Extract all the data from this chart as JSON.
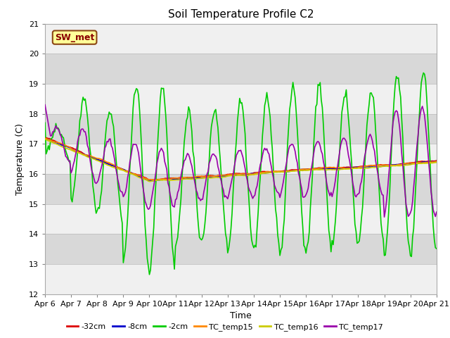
{
  "title": "Soil Temperature Profile C2",
  "xlabel": "Time",
  "ylabel": "Temperature (C)",
  "ylim": [
    12.0,
    21.0
  ],
  "yticks": [
    12.0,
    13.0,
    14.0,
    15.0,
    16.0,
    17.0,
    18.0,
    19.0,
    20.0,
    21.0
  ],
  "annotation_text": "SW_met",
  "annotation_text_color": "#8b0000",
  "annotation_bbox_face": "#ffff99",
  "annotation_bbox_edge": "#8b4513",
  "fig_bg": "#ffffff",
  "plot_bg_light": "#f0f0f0",
  "plot_bg_dark": "#d8d8d8",
  "series": {
    "neg32cm": {
      "label": "-32cm",
      "color": "#dd0000",
      "lw": 1.2
    },
    "neg8cm": {
      "label": "-8cm",
      "color": "#0000cc",
      "lw": 1.2
    },
    "neg2cm": {
      "label": "-2cm",
      "color": "#00cc00",
      "lw": 1.2
    },
    "TC_temp15": {
      "label": "TC_temp15",
      "color": "#ff8800",
      "lw": 1.2
    },
    "TC_temp16": {
      "label": "TC_temp16",
      "color": "#cccc00",
      "lw": 1.2
    },
    "TC_temp17": {
      "label": "TC_temp17",
      "color": "#9900aa",
      "lw": 1.2
    }
  },
  "x_tick_labels": [
    "Apr 6",
    "Apr 7",
    "Apr 8",
    "Apr 9",
    "Apr 10",
    "Apr 11",
    "Apr 12",
    "Apr 13",
    "Apr 14",
    "Apr 15",
    "Apr 16",
    "Apr 17",
    "Apr 18",
    "Apr 19",
    "Apr 20",
    "Apr 21"
  ]
}
